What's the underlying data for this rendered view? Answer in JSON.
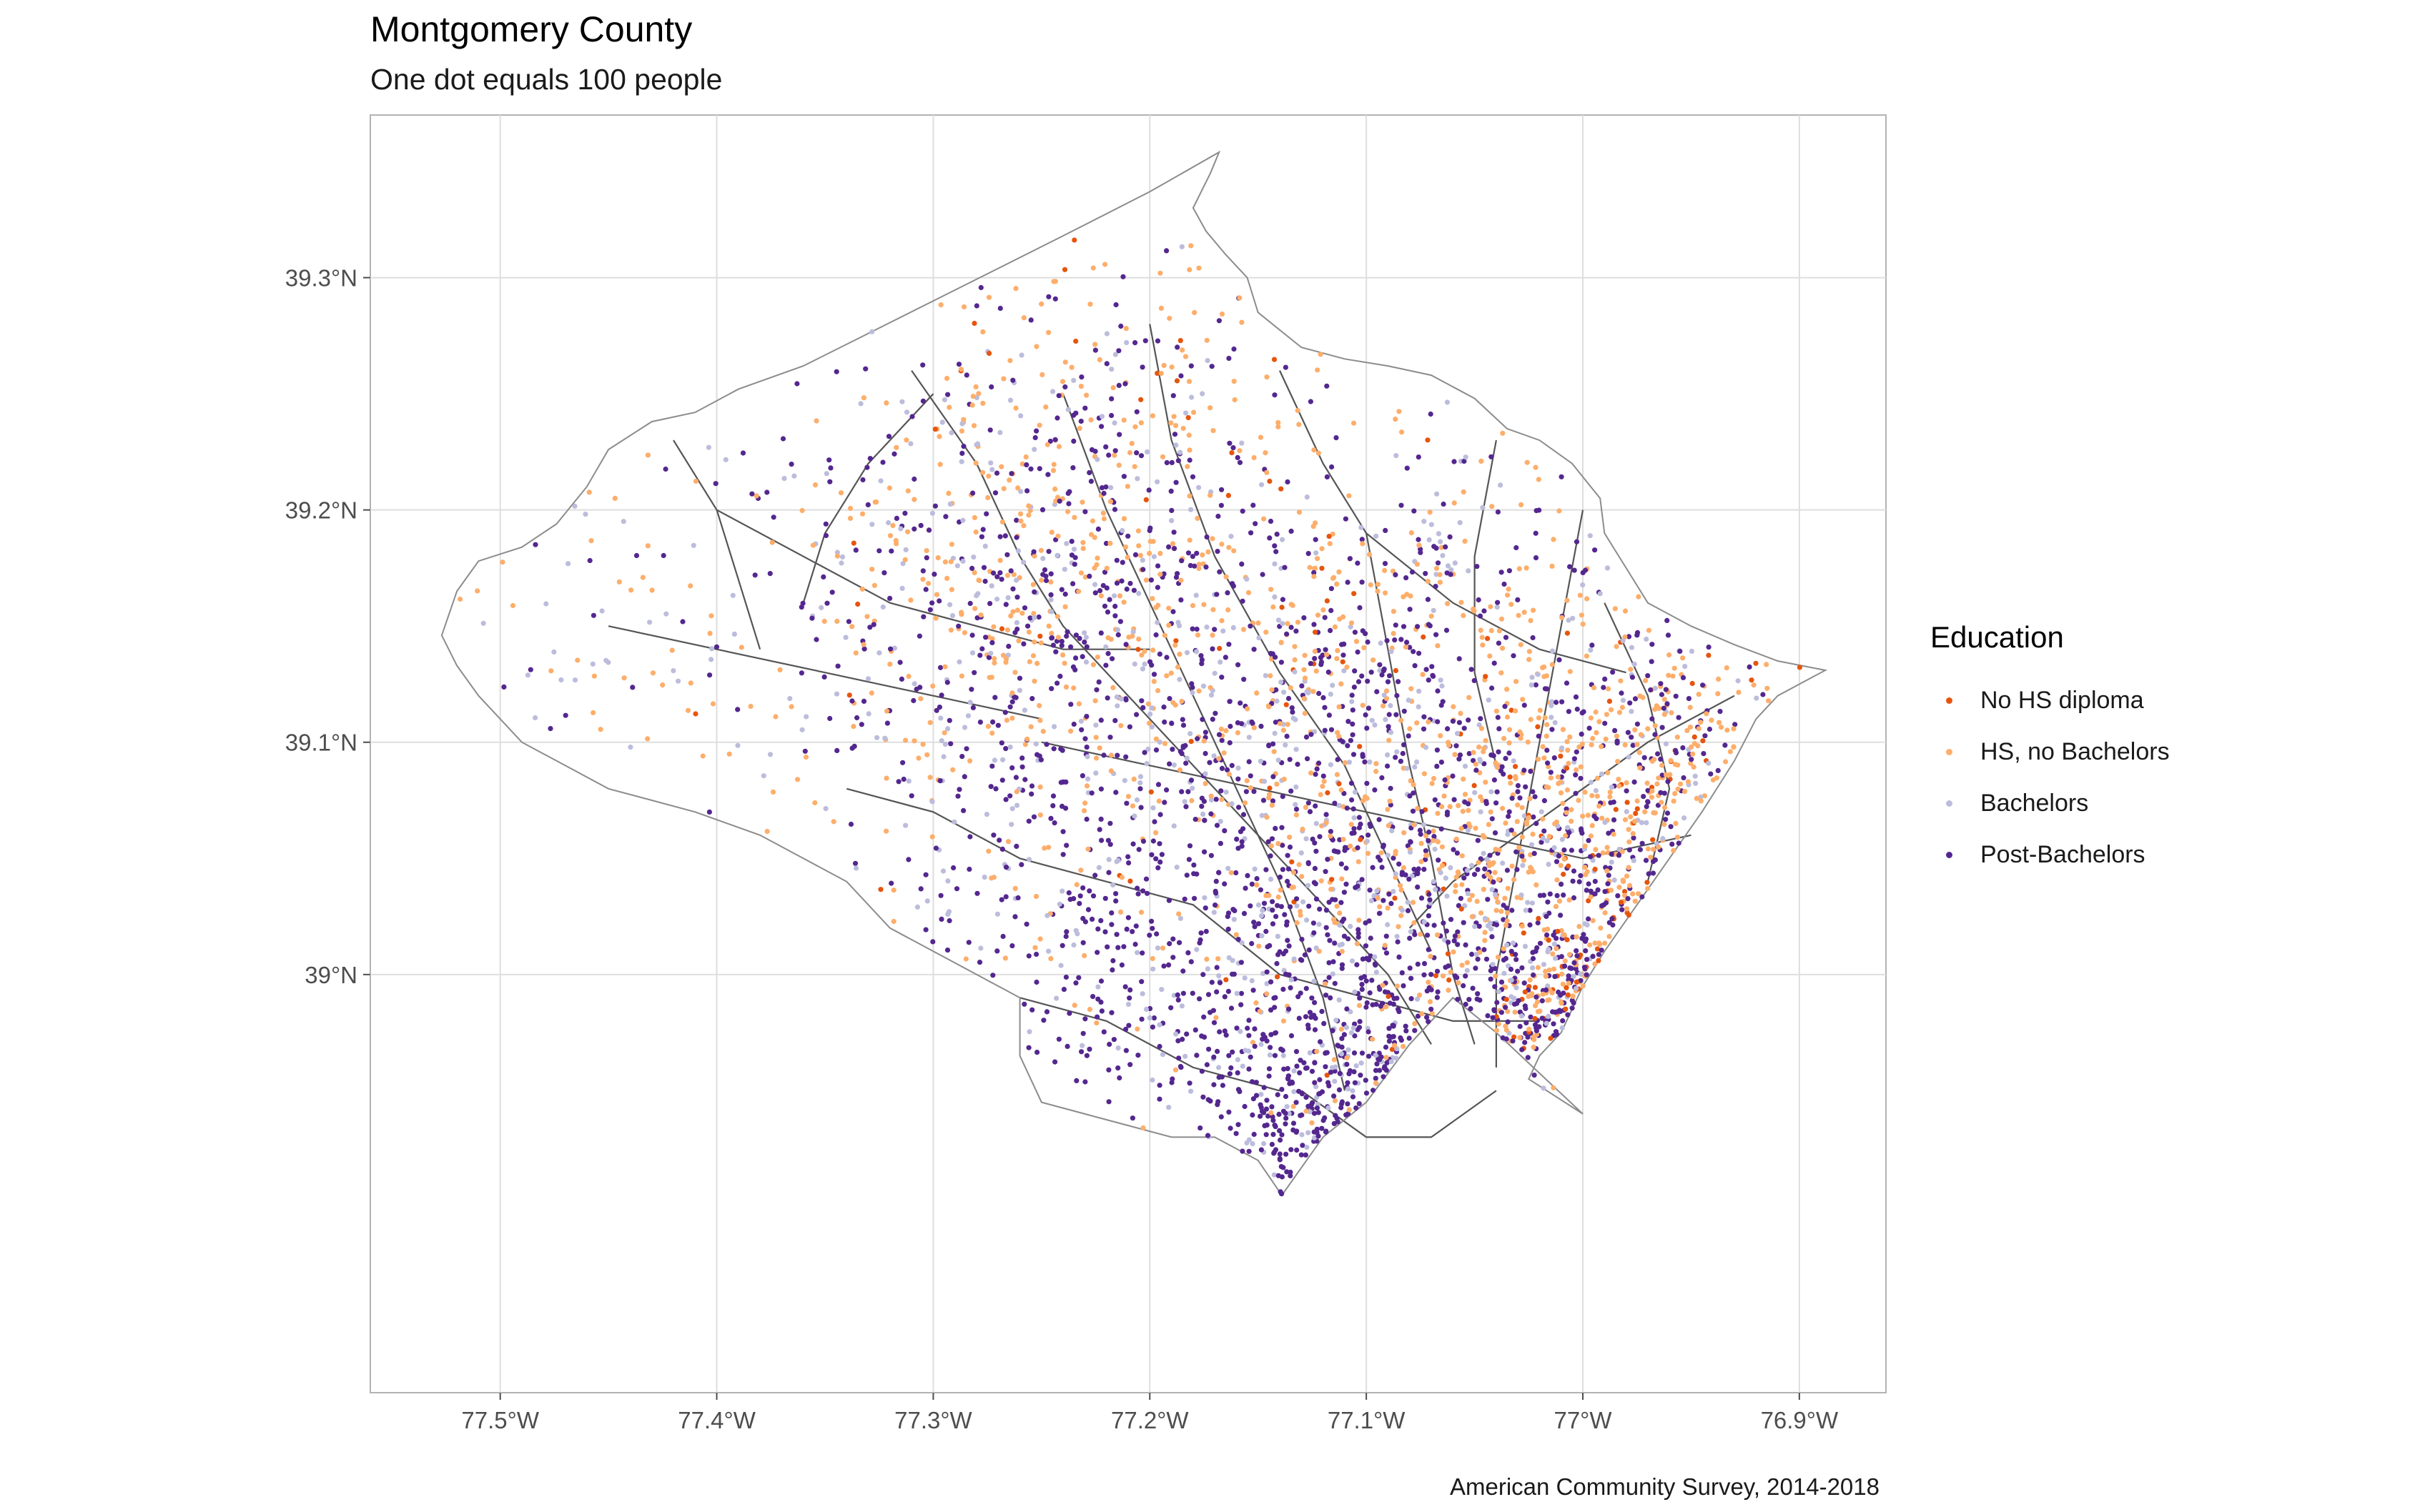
{
  "chart_data": {
    "type": "scatter",
    "title": "Montgomery County",
    "subtitle": "One dot equals 100 people",
    "caption": "American Community Survey, 2014-2018",
    "xlabel": "",
    "ylabel": "",
    "xlim": [
      -77.56,
      -76.86
    ],
    "ylim": [
      38.82,
      39.37
    ],
    "x_ticks": [
      {
        "value": -77.5,
        "label": "77.5°W"
      },
      {
        "value": -77.4,
        "label": "77.4°W"
      },
      {
        "value": -77.3,
        "label": "77.3°W"
      },
      {
        "value": -77.2,
        "label": "77.2°W"
      },
      {
        "value": -77.1,
        "label": "77.1°W"
      },
      {
        "value": -77.0,
        "label": "77°W"
      },
      {
        "value": -76.9,
        "label": "76.9°W"
      }
    ],
    "y_ticks": [
      {
        "value": 39.3,
        "label": "39.3°N"
      },
      {
        "value": 39.2,
        "label": "39.2°N"
      },
      {
        "value": 39.1,
        "label": "39.1°N"
      },
      {
        "value": 39.0,
        "label": "39°N"
      }
    ],
    "grid": true,
    "legend_title": "Education",
    "legend_position": "right",
    "series": [
      {
        "name": "No HS diploma",
        "color": "#e6550d"
      },
      {
        "name": "HS, no Bachelors",
        "color": "#fdae6b"
      },
      {
        "name": "Bachelors",
        "color": "#bcbddc"
      },
      {
        "name": "Post-Bachelors",
        "color": "#54278f"
      }
    ],
    "county_outline": [
      [
        -77.527,
        39.146
      ],
      [
        -77.52,
        39.165
      ],
      [
        -77.51,
        39.178
      ],
      [
        -77.49,
        39.184
      ],
      [
        -77.474,
        39.194
      ],
      [
        -77.46,
        39.21
      ],
      [
        -77.45,
        39.226
      ],
      [
        -77.43,
        39.238
      ],
      [
        -77.41,
        39.242
      ],
      [
        -77.39,
        39.252
      ],
      [
        -77.36,
        39.262
      ],
      [
        -77.33,
        39.276
      ],
      [
        -77.3,
        39.29
      ],
      [
        -77.27,
        39.304
      ],
      [
        -77.24,
        39.318
      ],
      [
        -77.2,
        39.337
      ],
      [
        -77.168,
        39.354
      ],
      [
        -77.172,
        39.345
      ],
      [
        -77.18,
        39.33
      ],
      [
        -77.174,
        39.32
      ],
      [
        -77.165,
        39.31
      ],
      [
        -77.155,
        39.3
      ],
      [
        -77.15,
        39.285
      ],
      [
        -77.13,
        39.27
      ],
      [
        -77.11,
        39.265
      ],
      [
        -77.09,
        39.262
      ],
      [
        -77.07,
        39.258
      ],
      [
        -77.05,
        39.248
      ],
      [
        -77.035,
        39.235
      ],
      [
        -77.02,
        39.23
      ],
      [
        -77.005,
        39.22
      ],
      [
        -76.992,
        39.205
      ],
      [
        -76.99,
        39.19
      ],
      [
        -76.98,
        39.175
      ],
      [
        -76.97,
        39.16
      ],
      [
        -76.95,
        39.15
      ],
      [
        -76.93,
        39.142
      ],
      [
        -76.91,
        39.135
      ],
      [
        -76.888,
        39.131
      ],
      [
        -76.91,
        39.12
      ],
      [
        -76.92,
        39.11
      ],
      [
        -76.93,
        39.092
      ],
      [
        -76.945,
        39.07
      ],
      [
        -76.96,
        39.05
      ],
      [
        -76.975,
        39.03
      ],
      [
        -76.99,
        39.01
      ],
      [
        -77.0,
        38.995
      ],
      [
        -77.01,
        38.975
      ],
      [
        -77.02,
        38.965
      ],
      [
        -77.025,
        38.955
      ],
      [
        -77.0,
        38.94
      ],
      [
        -77.04,
        38.975
      ],
      [
        -77.06,
        38.99
      ],
      [
        -77.08,
        38.97
      ],
      [
        -77.1,
        38.945
      ],
      [
        -77.12,
        38.93
      ],
      [
        -77.139,
        38.905
      ],
      [
        -77.15,
        38.92
      ],
      [
        -77.17,
        38.93
      ],
      [
        -77.19,
        38.93
      ],
      [
        -77.21,
        38.935
      ],
      [
        -77.23,
        38.94
      ],
      [
        -77.25,
        38.945
      ],
      [
        -77.26,
        38.965
      ],
      [
        -77.26,
        38.99
      ],
      [
        -77.28,
        39.0
      ],
      [
        -77.3,
        39.01
      ],
      [
        -77.32,
        39.02
      ],
      [
        -77.34,
        39.04
      ],
      [
        -77.36,
        39.05
      ],
      [
        -77.38,
        39.06
      ],
      [
        -77.41,
        39.07
      ],
      [
        -77.43,
        39.075
      ],
      [
        -77.45,
        39.08
      ],
      [
        -77.47,
        39.09
      ],
      [
        -77.49,
        39.1
      ],
      [
        -77.5,
        39.11
      ],
      [
        -77.51,
        39.12
      ],
      [
        -77.52,
        39.133
      ],
      [
        -77.527,
        39.146
      ]
    ],
    "roads": [
      [
        [
          -77.31,
          39.26
        ],
        [
          -77.28,
          39.22
        ],
        [
          -77.26,
          39.18
        ],
        [
          -77.24,
          39.15
        ],
        [
          -77.21,
          39.12
        ],
        [
          -77.18,
          39.09
        ],
        [
          -77.15,
          39.06
        ],
        [
          -77.12,
          39.03
        ],
        [
          -77.09,
          39.0
        ],
        [
          -77.07,
          38.97
        ]
      ],
      [
        [
          -77.24,
          39.25
        ],
        [
          -77.22,
          39.2
        ],
        [
          -77.2,
          39.16
        ],
        [
          -77.18,
          39.12
        ],
        [
          -77.16,
          39.08
        ],
        [
          -77.14,
          39.04
        ],
        [
          -77.12,
          38.99
        ],
        [
          -77.11,
          38.95
        ]
      ],
      [
        [
          -77.1,
          39.19
        ],
        [
          -77.09,
          39.14
        ],
        [
          -77.08,
          39.09
        ],
        [
          -77.07,
          39.05
        ],
        [
          -77.06,
          39.0
        ],
        [
          -77.05,
          38.97
        ]
      ],
      [
        [
          -77.2,
          39.28
        ],
        [
          -77.19,
          39.23
        ],
        [
          -77.17,
          39.18
        ],
        [
          -77.14,
          39.13
        ],
        [
          -77.11,
          39.09
        ],
        [
          -77.09,
          39.05
        ],
        [
          -77.07,
          39.01
        ]
      ],
      [
        [
          -77.0,
          39.2
        ],
        [
          -77.01,
          39.15
        ],
        [
          -77.02,
          39.1
        ],
        [
          -77.03,
          39.05
        ],
        [
          -77.04,
          39.0
        ],
        [
          -77.04,
          38.96
        ]
      ],
      [
        [
          -77.25,
          39.1
        ],
        [
          -77.2,
          39.09
        ],
        [
          -77.15,
          39.08
        ],
        [
          -77.1,
          39.07
        ],
        [
          -77.05,
          39.06
        ],
        [
          -77.0,
          39.05
        ],
        [
          -76.95,
          39.06
        ]
      ],
      [
        [
          -77.22,
          39.04
        ],
        [
          -77.18,
          39.03
        ],
        [
          -77.14,
          39.0
        ],
        [
          -77.1,
          38.99
        ],
        [
          -77.06,
          38.98
        ],
        [
          -77.02,
          38.98
        ]
      ],
      [
        [
          -77.4,
          39.2
        ],
        [
          -77.36,
          39.18
        ],
        [
          -77.32,
          39.16
        ],
        [
          -77.28,
          39.15
        ],
        [
          -77.24,
          39.14
        ],
        [
          -77.2,
          39.14
        ]
      ],
      [
        [
          -77.45,
          39.15
        ],
        [
          -77.4,
          39.14
        ],
        [
          -77.35,
          39.13
        ],
        [
          -77.3,
          39.12
        ],
        [
          -77.25,
          39.11
        ]
      ],
      [
        [
          -77.34,
          39.08
        ],
        [
          -77.3,
          39.07
        ],
        [
          -77.26,
          39.05
        ],
        [
          -77.22,
          39.04
        ]
      ],
      [
        [
          -76.93,
          39.12
        ],
        [
          -76.97,
          39.1
        ],
        [
          -77.0,
          39.08
        ],
        [
          -77.03,
          39.06
        ],
        [
          -77.06,
          39.04
        ],
        [
          -77.08,
          39.02
        ]
      ],
      [
        [
          -77.14,
          39.26
        ],
        [
          -77.12,
          39.22
        ],
        [
          -77.1,
          39.19
        ],
        [
          -77.06,
          39.16
        ],
        [
          -77.02,
          39.14
        ],
        [
          -76.98,
          39.13
        ]
      ],
      [
        [
          -77.13,
          38.95
        ],
        [
          -77.1,
          38.93
        ],
        [
          -77.07,
          38.93
        ],
        [
          -77.04,
          38.95
        ]
      ],
      [
        [
          -77.42,
          39.23
        ],
        [
          -77.4,
          39.2
        ],
        [
          -77.39,
          39.17
        ],
        [
          -77.38,
          39.14
        ]
      ],
      [
        [
          -77.3,
          39.25
        ],
        [
          -77.33,
          39.22
        ],
        [
          -77.35,
          39.19
        ],
        [
          -77.36,
          39.16
        ]
      ],
      [
        [
          -77.04,
          39.23
        ],
        [
          -77.05,
          39.18
        ],
        [
          -77.05,
          39.13
        ],
        [
          -77.04,
          39.09
        ]
      ],
      [
        [
          -77.26,
          38.99
        ],
        [
          -77.22,
          38.98
        ],
        [
          -77.18,
          38.96
        ],
        [
          -77.14,
          38.95
        ]
      ],
      [
        [
          -76.99,
          39.16
        ],
        [
          -76.97,
          39.12
        ],
        [
          -76.96,
          39.08
        ],
        [
          -76.97,
          39.04
        ]
      ]
    ],
    "clusters": [
      {
        "center": [
          -77.22,
          39.16
        ],
        "spread": [
          0.07,
          0.045
        ],
        "n": 520,
        "mix": [
          0.03,
          0.38,
          0.19,
          0.4
        ]
      },
      {
        "center": [
          -77.18,
          39.1
        ],
        "spread": [
          0.07,
          0.045
        ],
        "n": 430,
        "mix": [
          0.02,
          0.18,
          0.2,
          0.6
        ]
      },
      {
        "center": [
          -77.12,
          39.01
        ],
        "spread": [
          0.05,
          0.045
        ],
        "n": 500,
        "mix": [
          0.01,
          0.08,
          0.16,
          0.75
        ]
      },
      {
        "center": [
          -77.09,
          38.93
        ],
        "spread": [
          0.04,
          0.03
        ],
        "n": 320,
        "mix": [
          0.01,
          0.06,
          0.15,
          0.78
        ]
      },
      {
        "center": [
          -77.06,
          39.06
        ],
        "spread": [
          0.05,
          0.04
        ],
        "n": 440,
        "mix": [
          0.05,
          0.5,
          0.15,
          0.3
        ]
      },
      {
        "center": [
          -77.0,
          39.05
        ],
        "spread": [
          0.045,
          0.045
        ],
        "n": 360,
        "mix": [
          0.07,
          0.48,
          0.13,
          0.32
        ]
      },
      {
        "center": [
          -76.99,
          38.98
        ],
        "spread": [
          0.03,
          0.025
        ],
        "n": 260,
        "mix": [
          0.1,
          0.3,
          0.12,
          0.48
        ]
      },
      {
        "center": [
          -76.96,
          39.09
        ],
        "spread": [
          0.035,
          0.035
        ],
        "n": 240,
        "mix": [
          0.05,
          0.5,
          0.12,
          0.33
        ]
      },
      {
        "center": [
          -77.1,
          39.15
        ],
        "spread": [
          0.05,
          0.05
        ],
        "n": 220,
        "mix": [
          0.02,
          0.3,
          0.2,
          0.48
        ]
      },
      {
        "center": [
          -77.27,
          39.2
        ],
        "spread": [
          0.05,
          0.05
        ],
        "n": 240,
        "mix": [
          0.02,
          0.42,
          0.17,
          0.39
        ]
      },
      {
        "center": [
          -77.21,
          39.25
        ],
        "spread": [
          0.04,
          0.04
        ],
        "n": 150,
        "mix": [
          0.02,
          0.45,
          0.2,
          0.33
        ]
      },
      {
        "center": [
          -77.35,
          39.12
        ],
        "spread": [
          0.09,
          0.06
        ],
        "n": 130,
        "mix": [
          0.02,
          0.48,
          0.25,
          0.25
        ]
      },
      {
        "center": [
          -77.43,
          39.16
        ],
        "spread": [
          0.06,
          0.05
        ],
        "n": 60,
        "mix": [
          0.03,
          0.5,
          0.3,
          0.17
        ]
      },
      {
        "center": [
          -77.23,
          39.0
        ],
        "spread": [
          0.05,
          0.04
        ],
        "n": 200,
        "mix": [
          0.01,
          0.1,
          0.2,
          0.69
        ]
      },
      {
        "center": [
          -77.04,
          39.16
        ],
        "spread": [
          0.04,
          0.04
        ],
        "n": 140,
        "mix": [
          0.03,
          0.35,
          0.2,
          0.42
        ]
      }
    ]
  }
}
